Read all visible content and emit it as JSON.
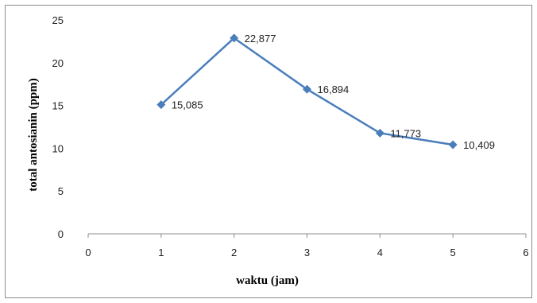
{
  "chart_data": {
    "type": "line",
    "title": "",
    "xlabel": "waktu (jam)",
    "ylabel": "total antosianin (ppm)",
    "xlim": [
      0,
      6
    ],
    "ylim": [
      0,
      25
    ],
    "xticks": [
      "0",
      "1",
      "2",
      "3",
      "4",
      "5",
      "6"
    ],
    "yticks": [
      "0",
      "5",
      "10",
      "15",
      "20",
      "25"
    ],
    "grid": false,
    "legend": "none",
    "series": [
      {
        "x": [
          1,
          2,
          3,
          4,
          5
        ],
        "y": [
          15.085,
          22.877,
          16.894,
          11.773,
          10.409
        ],
        "labels": [
          "15,085",
          "22,877",
          "16,894",
          "11,773",
          "10,409"
        ],
        "color": "#4a7ebb",
        "marker": "diamond"
      }
    ]
  }
}
